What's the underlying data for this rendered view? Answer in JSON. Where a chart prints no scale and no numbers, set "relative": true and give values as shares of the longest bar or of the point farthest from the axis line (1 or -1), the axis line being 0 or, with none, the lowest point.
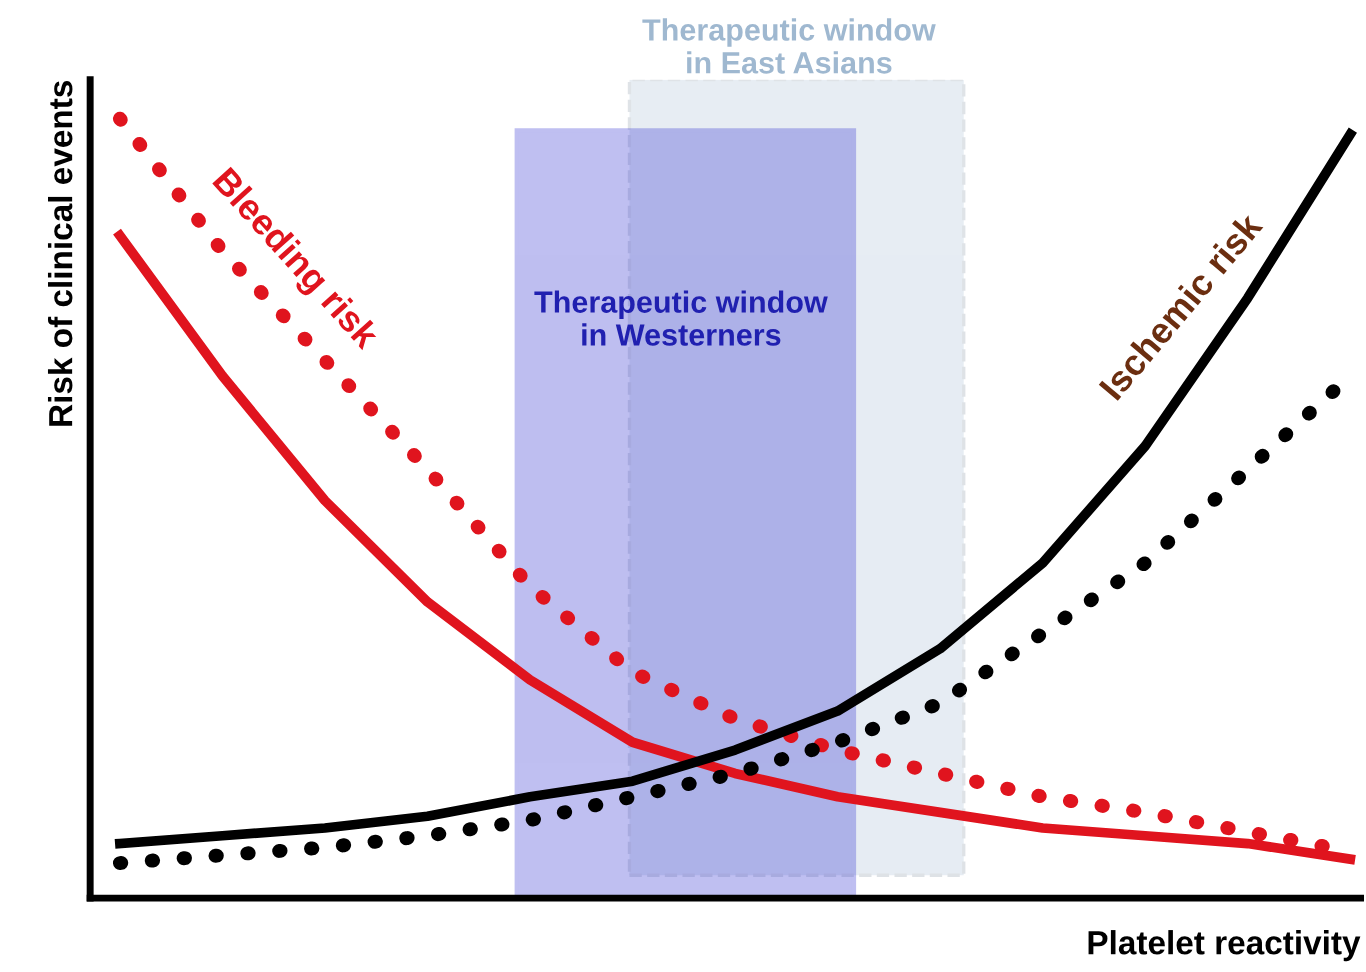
{
  "chart_data": {
    "type": "line",
    "relative": true,
    "ylabel": "Risk of clinical events",
    "xlabel": "Platelet reactivity",
    "categories": [
      null,
      null,
      null,
      null,
      null,
      null,
      null,
      null,
      null,
      null,
      null,
      null,
      null
    ],
    "series": [
      {
        "color": "#e0141e",
        "line_style": "dotted",
        "values": [
          1.0,
          0.83,
          0.69,
          0.55,
          0.4,
          0.29,
          0.23,
          0.19,
          0.16,
          0.13,
          0.11,
          0.085,
          0.06
        ]
      },
      {
        "color": "#e0141e",
        "line_style": "solid",
        "values": [
          0.85,
          0.67,
          0.51,
          0.38,
          0.28,
          0.2,
          0.16,
          0.13,
          0.11,
          0.09,
          0.08,
          0.07,
          0.05
        ]
      },
      {
        "color": "#000000",
        "line_style": "solid",
        "values": [
          0.07,
          0.08,
          0.09,
          0.105,
          0.13,
          0.15,
          0.19,
          0.24,
          0.32,
          0.43,
          0.58,
          0.77,
          0.98
        ]
      },
      {
        "color": "#000000",
        "line_style": "dotted",
        "values": [
          0.045,
          0.055,
          0.065,
          0.08,
          0.1,
          0.13,
          0.16,
          0.2,
          0.25,
          0.34,
          0.43,
          0.55,
          0.67
        ]
      }
    ],
    "annotations": [
      "Bleeding risk",
      "Ischemic risk",
      "Therapeutic window\nin East Asians",
      "Therapeutic window\nin Westerners"
    ],
    "marker": "none",
    "grid": false,
    "legend": false
  }
}
